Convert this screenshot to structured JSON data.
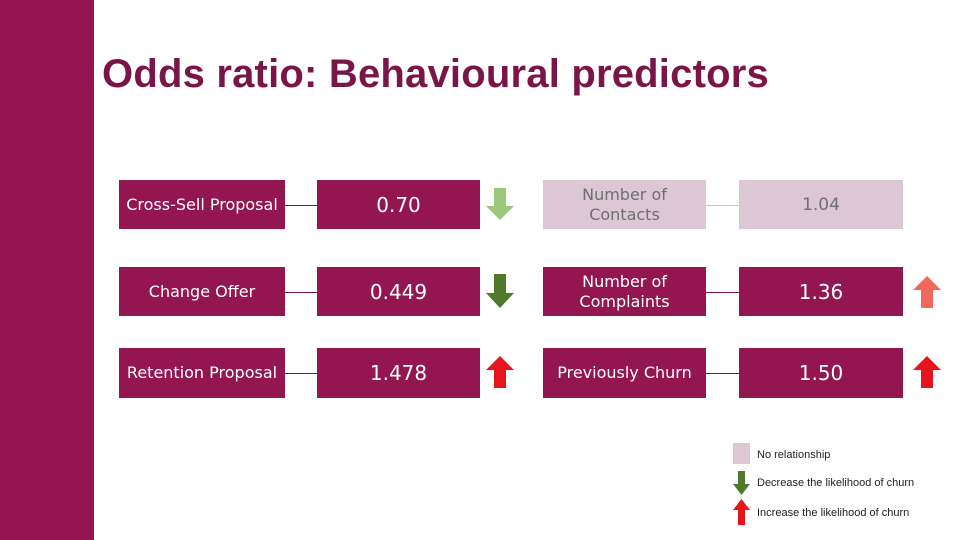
{
  "slide": {
    "title": "Odds ratio: Behavioural predictors",
    "colors": {
      "accent": "#941651",
      "title": "#7a1548",
      "muted_box": "#dcc8d5",
      "decrease_arrow_dark": "#4e7a2a",
      "decrease_arrow_light": "#9bc87a",
      "increase_arrow": "#e8141b",
      "increase_arrow_light": "#f0695a"
    }
  },
  "predictors_left": [
    {
      "label": "Cross-Sell Proposal",
      "value": "0.70",
      "effect": "decrease-light-icon"
    },
    {
      "label": "Change Offer",
      "value": "0.449",
      "effect": "decrease-icon"
    },
    {
      "label": "Retention Proposal",
      "value": "1.478",
      "effect": "increase-icon"
    }
  ],
  "predictors_right": [
    {
      "label": "Number of Contacts",
      "value": "1.04",
      "effect": "none",
      "muted": true
    },
    {
      "label": "Number of Complaints",
      "value": "1.36",
      "effect": "increase-light-icon"
    },
    {
      "label": "Previously Churn",
      "value": "1.50",
      "effect": "increase-icon"
    }
  ],
  "legend": {
    "no_relationship": "No relationship",
    "decrease": "Decrease the likelihood of churn",
    "increase": "Increase the likelihood of churn"
  }
}
